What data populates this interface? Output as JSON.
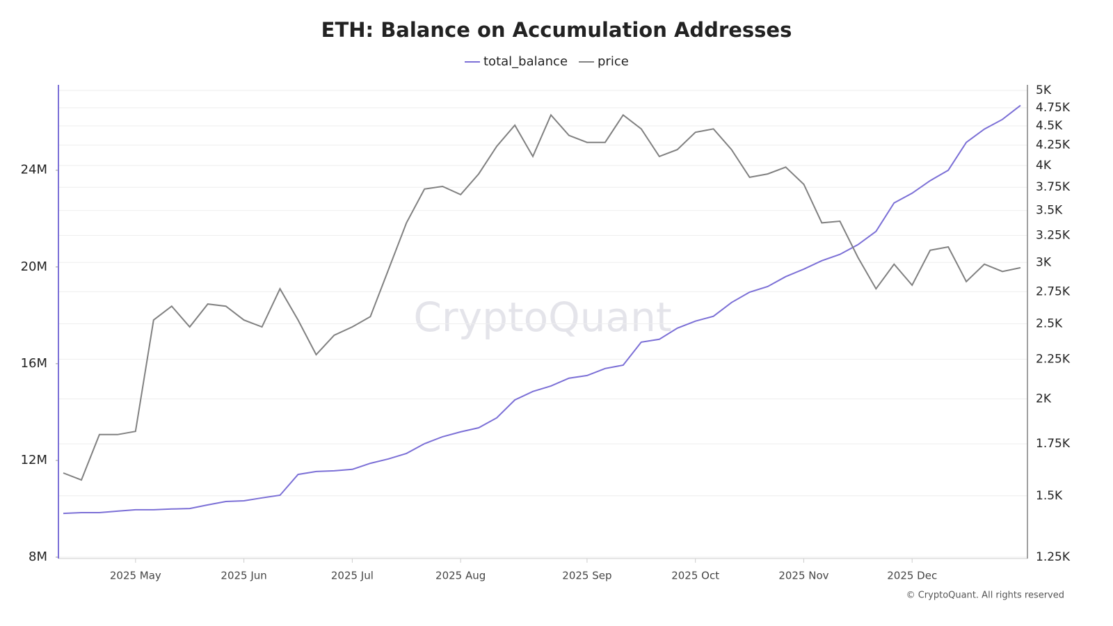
{
  "chart_data": {
    "type": "line",
    "title": "ETH: Balance on Accumulation Addresses",
    "watermark": "CryptoQuant",
    "footer": "© CryptoQuant. All rights reserved",
    "categories": [
      null,
      null,
      null,
      null,
      "2025 May",
      null,
      null,
      null,
      null,
      null,
      "2025 Jun",
      null,
      null,
      null,
      null,
      null,
      "2025 Jul",
      null,
      null,
      null,
      null,
      null,
      "2025 Aug",
      null,
      null,
      null,
      null,
      null,
      null,
      "2025 Sep",
      null,
      null,
      null,
      null,
      null,
      "2025 Oct",
      null,
      null,
      null,
      null,
      null,
      "2025 Nov",
      null,
      null,
      null,
      null,
      null,
      "2025 Dec",
      null,
      null,
      null,
      null,
      null,
      null
    ],
    "series": [
      {
        "name": "total_balance",
        "color": "#7b6fd6",
        "axis": "y",
        "values": [
          9810000,
          9840000,
          9840000,
          9900000,
          9960000,
          9960000,
          9990000,
          10010000,
          10160000,
          10300000,
          10330000,
          10450000,
          10560000,
          11420000,
          11540000,
          11570000,
          11630000,
          11880000,
          12060000,
          12290000,
          12690000,
          12980000,
          13180000,
          13350000,
          13760000,
          14500000,
          14850000,
          15080000,
          15400000,
          15510000,
          15800000,
          15940000,
          16890000,
          17010000,
          17470000,
          17760000,
          17960000,
          18530000,
          18960000,
          19190000,
          19600000,
          19910000,
          20260000,
          20520000,
          20920000,
          21470000,
          22650000,
          23050000,
          23570000,
          24000000,
          25150000,
          25700000,
          26100000,
          26680000
        ]
      },
      {
        "name": "price",
        "color": "#808080",
        "axis": "y2",
        "values": [
          1605,
          1572,
          1799,
          1799,
          1816,
          2528,
          2634,
          2477,
          2651,
          2634,
          2528,
          2477,
          2774,
          2528,
          2281,
          2416,
          2477,
          2554,
          2934,
          3374,
          3730,
          3760,
          3669,
          3901,
          4236,
          4509,
          4110,
          4648,
          4374,
          4285,
          4285,
          4648,
          4460,
          4110,
          4194,
          4415,
          4460,
          4194,
          3863,
          3901,
          3981,
          3783,
          3374,
          3391,
          3045,
          2774,
          2984,
          2804,
          3110,
          3141,
          2834,
          2984,
          2920,
          2953
        ]
      }
    ],
    "ylim": [
      8000000,
      27300000
    ],
    "yticks": [
      {
        "value": 8000000,
        "label": "8M"
      },
      {
        "value": 12000000,
        "label": "12M"
      },
      {
        "value": 16000000,
        "label": "16M"
      },
      {
        "value": 20000000,
        "label": "20M"
      },
      {
        "value": 24000000,
        "label": "24M"
      }
    ],
    "y2lim": [
      1250,
      5000
    ],
    "y2scale": "log",
    "y2ticks": [
      {
        "value": 1250,
        "label": "1.25K"
      },
      {
        "value": 1500,
        "label": "1.5K"
      },
      {
        "value": 1750,
        "label": "1.75K"
      },
      {
        "value": 2000,
        "label": "2K"
      },
      {
        "value": 2250,
        "label": "2.25K"
      },
      {
        "value": 2500,
        "label": "2.5K"
      },
      {
        "value": 2750,
        "label": "2.75K"
      },
      {
        "value": 3000,
        "label": "3K"
      },
      {
        "value": 3250,
        "label": "3.25K"
      },
      {
        "value": 3500,
        "label": "3.5K"
      },
      {
        "value": 3750,
        "label": "3.75K"
      },
      {
        "value": 4000,
        "label": "4K"
      },
      {
        "value": 4250,
        "label": "4.25K"
      },
      {
        "value": 4500,
        "label": "4.5K"
      },
      {
        "value": 4750,
        "label": "4.75K"
      },
      {
        "value": 5000,
        "label": "5K"
      }
    ],
    "grid": true
  }
}
